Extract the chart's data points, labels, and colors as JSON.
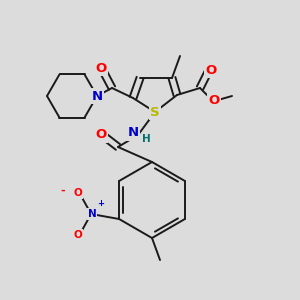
{
  "bg_color": "#dcdcdc",
  "bond_color": "#1a1a1a",
  "bond_width": 1.4,
  "atom_colors": {
    "O": "#ff0000",
    "N": "#0000cc",
    "S": "#b8b800",
    "H": "#007070",
    "C": "#1a1a1a"
  },
  "font_size": 9.5,
  "font_size_small": 7.5
}
